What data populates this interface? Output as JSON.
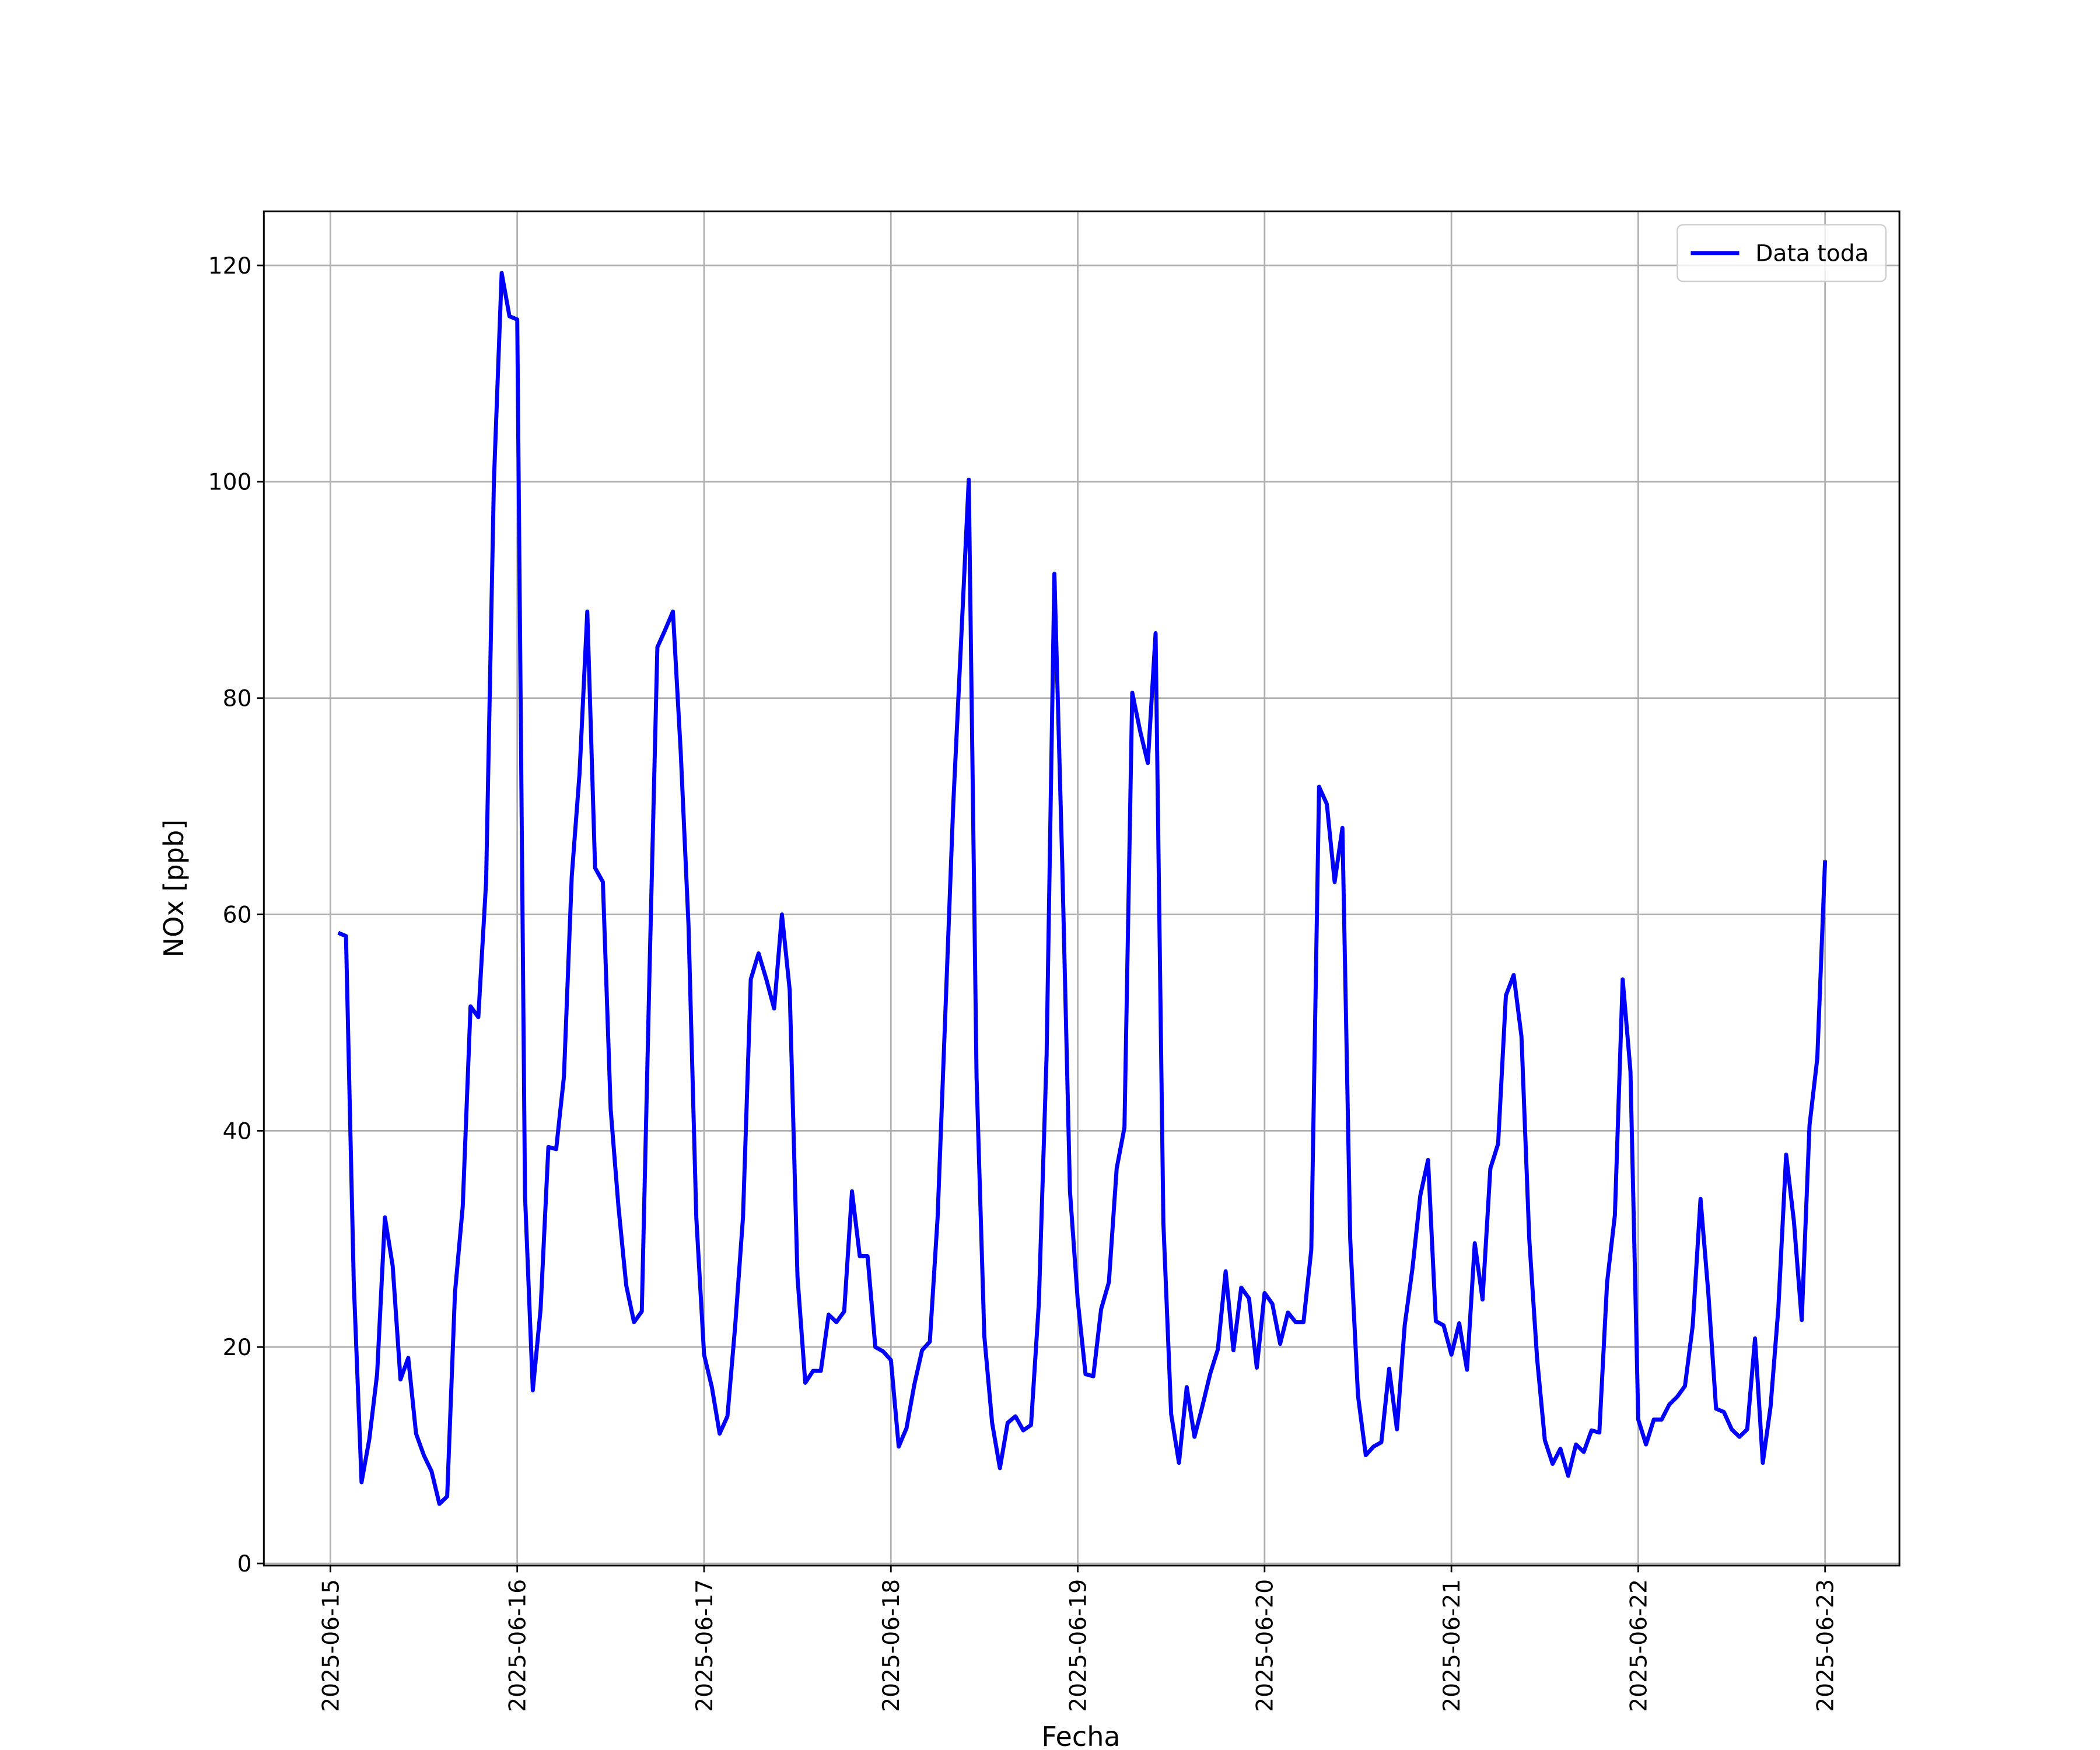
{
  "chart_data": {
    "type": "line",
    "xlabel": "Fecha",
    "ylabel": "NOx [ppb]",
    "x": [
      "2025-06-15 01:00",
      "2025-06-15 02:00",
      "2025-06-15 03:00",
      "2025-06-15 04:00",
      "2025-06-15 05:00",
      "2025-06-15 06:00",
      "2025-06-15 07:00",
      "2025-06-15 08:00",
      "2025-06-15 09:00",
      "2025-06-15 10:00",
      "2025-06-15 11:00",
      "2025-06-15 12:00",
      "2025-06-15 13:00",
      "2025-06-15 14:00",
      "2025-06-15 15:00",
      "2025-06-15 16:00",
      "2025-06-15 17:00",
      "2025-06-15 18:00",
      "2025-06-15 19:00",
      "2025-06-15 20:00",
      "2025-06-15 21:00",
      "2025-06-15 22:00",
      "2025-06-15 23:00",
      "2025-06-16 00:00",
      "2025-06-16 01:00",
      "2025-06-16 02:00",
      "2025-06-16 03:00",
      "2025-06-16 04:00",
      "2025-06-16 05:00",
      "2025-06-16 06:00",
      "2025-06-16 07:00",
      "2025-06-16 08:00",
      "2025-06-16 09:00",
      "2025-06-16 10:00",
      "2025-06-16 11:00",
      "2025-06-16 12:00",
      "2025-06-16 13:00",
      "2025-06-16 14:00",
      "2025-06-16 15:00",
      "2025-06-16 16:00",
      "2025-06-16 17:00",
      "2025-06-16 18:00",
      "2025-06-16 19:00",
      "2025-06-16 20:00",
      "2025-06-16 21:00",
      "2025-06-16 22:00",
      "2025-06-16 23:00",
      "2025-06-17 00:00",
      "2025-06-17 01:00",
      "2025-06-17 02:00",
      "2025-06-17 03:00",
      "2025-06-17 04:00",
      "2025-06-17 05:00",
      "2025-06-17 06:00",
      "2025-06-17 07:00",
      "2025-06-17 08:00",
      "2025-06-17 09:00",
      "2025-06-17 10:00",
      "2025-06-17 11:00",
      "2025-06-17 12:00",
      "2025-06-17 13:00",
      "2025-06-17 14:00",
      "2025-06-17 15:00",
      "2025-06-17 16:00",
      "2025-06-17 17:00",
      "2025-06-17 18:00",
      "2025-06-17 19:00",
      "2025-06-17 20:00",
      "2025-06-17 21:00",
      "2025-06-17 22:00",
      "2025-06-17 23:00",
      "2025-06-18 00:00",
      "2025-06-18 01:00",
      "2025-06-18 02:00",
      "2025-06-18 03:00",
      "2025-06-18 04:00",
      "2025-06-18 05:00",
      "2025-06-18 06:00",
      "2025-06-18 07:00",
      "2025-06-18 08:00",
      "2025-06-18 09:00",
      "2025-06-18 10:00",
      "2025-06-18 11:00",
      "2025-06-18 12:00",
      "2025-06-18 13:00",
      "2025-06-18 14:00",
      "2025-06-18 15:00",
      "2025-06-18 16:00",
      "2025-06-18 17:00",
      "2025-06-18 18:00",
      "2025-06-18 19:00",
      "2025-06-18 20:00",
      "2025-06-18 21:00",
      "2025-06-18 22:00",
      "2025-06-18 23:00",
      "2025-06-19 00:00",
      "2025-06-19 01:00",
      "2025-06-19 02:00",
      "2025-06-19 03:00",
      "2025-06-19 04:00",
      "2025-06-19 05:00",
      "2025-06-19 06:00",
      "2025-06-19 07:00",
      "2025-06-19 08:00",
      "2025-06-19 09:00",
      "2025-06-19 10:00",
      "2025-06-19 11:00",
      "2025-06-19 12:00",
      "2025-06-19 13:00",
      "2025-06-19 14:00",
      "2025-06-19 15:00",
      "2025-06-19 16:00",
      "2025-06-19 17:00",
      "2025-06-19 18:00",
      "2025-06-19 19:00",
      "2025-06-19 20:00",
      "2025-06-19 21:00",
      "2025-06-19 22:00",
      "2025-06-19 23:00",
      "2025-06-20 00:00",
      "2025-06-20 01:00",
      "2025-06-20 02:00",
      "2025-06-20 03:00",
      "2025-06-20 04:00",
      "2025-06-20 05:00",
      "2025-06-20 06:00",
      "2025-06-20 07:00",
      "2025-06-20 08:00",
      "2025-06-20 09:00",
      "2025-06-20 10:00",
      "2025-06-20 11:00",
      "2025-06-20 12:00",
      "2025-06-20 13:00",
      "2025-06-20 14:00",
      "2025-06-20 15:00",
      "2025-06-20 16:00",
      "2025-06-20 17:00",
      "2025-06-20 18:00",
      "2025-06-20 19:00",
      "2025-06-20 20:00",
      "2025-06-20 21:00",
      "2025-06-20 22:00",
      "2025-06-20 23:00",
      "2025-06-21 00:00",
      "2025-06-21 01:00",
      "2025-06-21 02:00",
      "2025-06-21 03:00",
      "2025-06-21 04:00",
      "2025-06-21 05:00",
      "2025-06-21 06:00",
      "2025-06-21 07:00",
      "2025-06-21 08:00",
      "2025-06-21 09:00",
      "2025-06-21 10:00",
      "2025-06-21 11:00",
      "2025-06-21 12:00",
      "2025-06-21 13:00",
      "2025-06-21 14:00",
      "2025-06-21 15:00",
      "2025-06-21 16:00",
      "2025-06-21 17:00",
      "2025-06-21 18:00",
      "2025-06-21 19:00",
      "2025-06-21 20:00",
      "2025-06-21 21:00",
      "2025-06-21 22:00",
      "2025-06-21 23:00",
      "2025-06-22 00:00",
      "2025-06-22 01:00",
      "2025-06-22 02:00",
      "2025-06-22 03:00",
      "2025-06-22 04:00",
      "2025-06-22 05:00",
      "2025-06-22 06:00",
      "2025-06-22 07:00",
      "2025-06-22 08:00",
      "2025-06-22 09:00",
      "2025-06-22 10:00",
      "2025-06-22 11:00",
      "2025-06-22 12:00",
      "2025-06-22 13:00",
      "2025-06-22 14:00",
      "2025-06-22 15:00",
      "2025-06-22 16:00",
      "2025-06-22 17:00",
      "2025-06-22 18:00",
      "2025-06-22 19:00",
      "2025-06-22 20:00",
      "2025-06-22 21:00",
      "2025-06-22 22:00",
      "2025-06-22 23:00",
      "2025-06-23 00:00"
    ],
    "series": [
      {
        "name": "Data toda",
        "color": "#0000ff",
        "values": [
          58.3,
          58,
          26,
          7.5,
          11.5,
          17.5,
          32,
          27.5,
          17,
          19,
          12,
          10,
          8.5,
          5.5,
          6.2,
          25,
          33,
          51.5,
          50.5,
          63,
          100,
          119.3,
          115.3,
          115,
          34,
          16,
          23.5,
          38.5,
          38.3,
          45,
          63.5,
          73,
          88,
          64.3,
          63,
          42,
          33,
          25.7,
          22.3,
          23.3,
          55,
          84.7,
          86.3,
          88,
          75,
          59,
          32,
          19.3,
          16.3,
          12,
          13.6,
          22,
          32,
          54,
          56.4,
          54,
          51.3,
          60,
          53,
          26.5,
          16.7,
          17.8,
          17.8,
          23,
          22.3,
          23.3,
          34.4,
          28.4,
          28.4,
          20,
          19.6,
          18.8,
          10.8,
          12.5,
          16.5,
          19.7,
          20.5,
          32,
          51,
          70,
          85,
          100.2,
          45,
          21,
          13,
          8.8,
          13,
          13.6,
          12.3,
          12.8,
          24,
          47,
          91.5,
          65,
          34.4,
          24.3,
          17.5,
          17.3,
          23.5,
          26,
          36.5,
          40.3,
          80.5,
          77,
          74,
          86,
          31.5,
          13.8,
          9.3,
          16.3,
          11.7,
          14.5,
          17.5,
          19.8,
          27,
          19.7,
          25.5,
          24.5,
          18.1,
          25,
          24,
          20.3,
          23.2,
          22.3,
          22.3,
          29,
          71.8,
          70.2,
          63,
          68,
          30,
          15.5,
          10,
          10.8,
          11.2,
          18,
          12.4,
          22,
          27.3,
          34,
          37.3,
          22.4,
          22,
          19.3,
          22.2,
          17.9,
          29.6,
          24.4,
          36.5,
          38.8,
          52.5,
          54.4,
          48.7,
          30,
          19,
          11.4,
          9.2,
          10.6,
          8.1,
          11,
          10.3,
          12.3,
          12.1,
          26,
          32.2,
          54,
          45.5,
          13.3,
          11,
          13.3,
          13.3,
          14.7,
          15.4,
          16.4,
          22,
          33.7,
          25,
          14.3,
          14,
          12.4,
          11.7,
          12.4,
          20.8,
          9.3,
          14.5,
          23.6,
          37.8,
          31.6,
          22.5,
          40.5,
          46.7,
          65
        ]
      }
    ],
    "xlim": [
      "2025-06-14 15:27",
      "2025-06-23 09:33"
    ],
    "xticks": [
      "2025-06-15",
      "2025-06-16",
      "2025-06-17",
      "2025-06-18",
      "2025-06-19",
      "2025-06-20",
      "2025-06-21",
      "2025-06-22",
      "2025-06-23"
    ],
    "ylim": [
      -0.2,
      125
    ],
    "yticks": [
      0,
      20,
      40,
      60,
      80,
      100,
      120
    ],
    "grid": true,
    "legend": "upper right"
  }
}
